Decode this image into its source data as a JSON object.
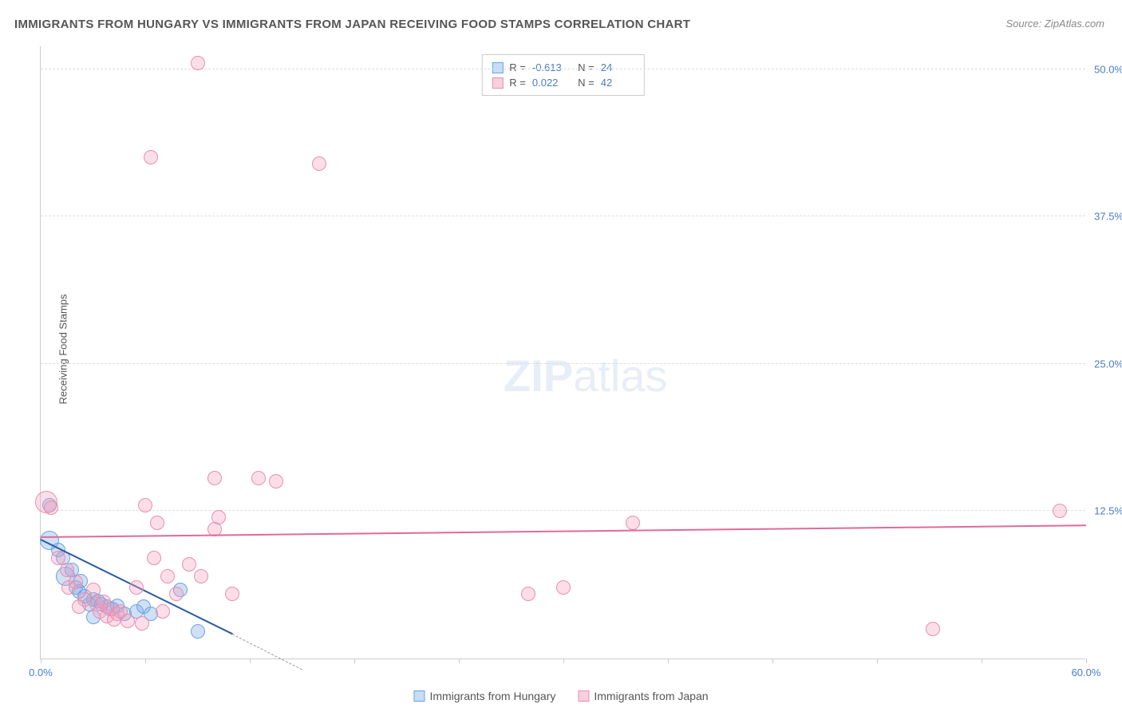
{
  "title": "IMMIGRANTS FROM HUNGARY VS IMMIGRANTS FROM JAPAN RECEIVING FOOD STAMPS CORRELATION CHART",
  "source": "Source: ZipAtlas.com",
  "y_axis_label": "Receiving Food Stamps",
  "watermark": "ZIPatlas",
  "chart": {
    "type": "scatter",
    "xlim": [
      0,
      60
    ],
    "ylim": [
      0,
      52
    ],
    "background_color": "#ffffff",
    "grid_color": "#dddddd",
    "axis_color": "#cccccc",
    "y_ticks": [
      {
        "value": 12.5,
        "label": "12.5%"
      },
      {
        "value": 25.0,
        "label": "25.0%"
      },
      {
        "value": 37.5,
        "label": "37.5%"
      },
      {
        "value": 50.0,
        "label": "50.0%"
      }
    ],
    "x_ticks": [
      0,
      6,
      12,
      18,
      24,
      30,
      36,
      42,
      48,
      54,
      60
    ],
    "x_tick_labels": [
      {
        "value": 0,
        "label": "0.0%"
      },
      {
        "value": 60,
        "label": "60.0%"
      }
    ],
    "series": [
      {
        "name": "Immigrants from Hungary",
        "color_fill": "rgba(120, 170, 230, 0.35)",
        "color_stroke": "#6aa3e0",
        "swatch_fill": "#c5ddf5",
        "swatch_border": "#6aa3e0",
        "R": "-0.613",
        "N": "24",
        "trend": {
          "x1": 0,
          "y1": 10.0,
          "x2": 11,
          "y2": 2.0,
          "ext_x2": 15,
          "ext_y2": -1,
          "color": "#2c5aa0"
        },
        "points": [
          {
            "x": 0.5,
            "y": 13.0,
            "r": 9
          },
          {
            "x": 0.5,
            "y": 10.0,
            "r": 12
          },
          {
            "x": 1.0,
            "y": 9.2,
            "r": 9
          },
          {
            "x": 1.3,
            "y": 8.5,
            "r": 9
          },
          {
            "x": 1.4,
            "y": 7.0,
            "r": 12
          },
          {
            "x": 2.0,
            "y": 6.0,
            "r": 9
          },
          {
            "x": 2.2,
            "y": 5.7,
            "r": 9
          },
          {
            "x": 2.5,
            "y": 5.3,
            "r": 9
          },
          {
            "x": 2.8,
            "y": 4.6,
            "r": 9
          },
          {
            "x": 3.0,
            "y": 5.0,
            "r": 9
          },
          {
            "x": 3.3,
            "y": 4.9,
            "r": 9
          },
          {
            "x": 3.0,
            "y": 3.5,
            "r": 9
          },
          {
            "x": 3.5,
            "y": 4.6,
            "r": 9
          },
          {
            "x": 3.8,
            "y": 4.4,
            "r": 9
          },
          {
            "x": 4.1,
            "y": 4.2,
            "r": 9
          },
          {
            "x": 4.4,
            "y": 4.5,
            "r": 9
          },
          {
            "x": 4.8,
            "y": 3.8,
            "r": 9
          },
          {
            "x": 5.5,
            "y": 4.0,
            "r": 9
          },
          {
            "x": 5.9,
            "y": 4.4,
            "r": 9
          },
          {
            "x": 6.3,
            "y": 3.8,
            "r": 9
          },
          {
            "x": 8.0,
            "y": 5.8,
            "r": 9
          },
          {
            "x": 9.0,
            "y": 2.3,
            "r": 9
          },
          {
            "x": 1.8,
            "y": 7.5,
            "r": 9
          },
          {
            "x": 2.3,
            "y": 6.6,
            "r": 9
          }
        ]
      },
      {
        "name": "Immigrants from Japan",
        "color_fill": "rgba(245, 160, 190, 0.35)",
        "color_stroke": "#e690b0",
        "swatch_fill": "#f7d0de",
        "swatch_border": "#e690b0",
        "R": "0.022",
        "N": "42",
        "trend": {
          "x1": 0,
          "y1": 10.2,
          "x2": 60,
          "y2": 11.2,
          "color": "#e06a9a"
        },
        "points": [
          {
            "x": 0.3,
            "y": 13.3,
            "r": 14
          },
          {
            "x": 0.6,
            "y": 12.8,
            "r": 9
          },
          {
            "x": 1.0,
            "y": 8.5,
            "r": 9
          },
          {
            "x": 1.5,
            "y": 7.5,
            "r": 9
          },
          {
            "x": 1.6,
            "y": 6.0,
            "r": 9
          },
          {
            "x": 2.0,
            "y": 6.5,
            "r": 9
          },
          {
            "x": 2.5,
            "y": 5.0,
            "r": 9
          },
          {
            "x": 3.0,
            "y": 5.8,
            "r": 9
          },
          {
            "x": 3.2,
            "y": 4.6,
            "r": 9
          },
          {
            "x": 3.4,
            "y": 4.0,
            "r": 9
          },
          {
            "x": 3.6,
            "y": 4.8,
            "r": 9
          },
          {
            "x": 3.8,
            "y": 3.6,
            "r": 9
          },
          {
            "x": 4.0,
            "y": 4.2,
            "r": 9
          },
          {
            "x": 4.2,
            "y": 3.3,
            "r": 9
          },
          {
            "x": 4.4,
            "y": 3.8,
            "r": 9
          },
          {
            "x": 4.6,
            "y": 4.0,
            "r": 9
          },
          {
            "x": 5.0,
            "y": 3.2,
            "r": 9
          },
          {
            "x": 5.5,
            "y": 6.0,
            "r": 9
          },
          {
            "x": 5.8,
            "y": 3.0,
            "r": 9
          },
          {
            "x": 6.0,
            "y": 13.0,
            "r": 9
          },
          {
            "x": 6.5,
            "y": 8.5,
            "r": 9
          },
          {
            "x": 6.7,
            "y": 11.5,
            "r": 9
          },
          {
            "x": 7.0,
            "y": 4.0,
            "r": 9
          },
          {
            "x": 7.3,
            "y": 7.0,
            "r": 9
          },
          {
            "x": 7.8,
            "y": 5.5,
            "r": 9
          },
          {
            "x": 8.5,
            "y": 8.0,
            "r": 9
          },
          {
            "x": 9.0,
            "y": 50.5,
            "r": 9
          },
          {
            "x": 9.2,
            "y": 7.0,
            "r": 9
          },
          {
            "x": 10.0,
            "y": 11.0,
            "r": 9
          },
          {
            "x": 10.0,
            "y": 15.3,
            "r": 9
          },
          {
            "x": 10.2,
            "y": 12.0,
            "r": 9
          },
          {
            "x": 11.0,
            "y": 5.5,
            "r": 9
          },
          {
            "x": 12.5,
            "y": 15.3,
            "r": 9
          },
          {
            "x": 13.5,
            "y": 15.0,
            "r": 9
          },
          {
            "x": 6.3,
            "y": 42.5,
            "r": 9
          },
          {
            "x": 16.0,
            "y": 42.0,
            "r": 9
          },
          {
            "x": 28.0,
            "y": 5.5,
            "r": 9
          },
          {
            "x": 30.0,
            "y": 6.0,
            "r": 9
          },
          {
            "x": 34.0,
            "y": 11.5,
            "r": 9
          },
          {
            "x": 51.2,
            "y": 2.5,
            "r": 9
          },
          {
            "x": 58.5,
            "y": 12.5,
            "r": 9
          },
          {
            "x": 2.2,
            "y": 4.4,
            "r": 9
          }
        ]
      }
    ]
  },
  "legend": {
    "hungary": "Immigrants from Hungary",
    "japan": "Immigrants from Japan"
  }
}
